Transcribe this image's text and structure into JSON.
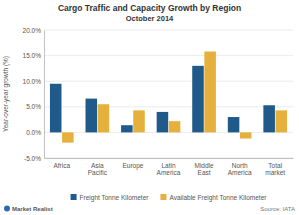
{
  "chart_data": {
    "type": "bar",
    "title": "Cargo Traffic and Capacity Growth by Region",
    "subtitle": "October 2014",
    "y_label": "Year-over-year growth (%)",
    "source": "Source: IATA",
    "logo": "Market Realist",
    "categories": [
      "Africa",
      "Asia Pacific",
      "Europe",
      "Latin America",
      "Middle East",
      "North America",
      "Total market"
    ],
    "series": [
      {
        "name": "Freight Tonne Kilometer",
        "color": "#1f5a8a",
        "values": [
          9.5,
          6.6,
          1.4,
          4.0,
          13.0,
          3.0,
          5.3
        ]
      },
      {
        "name": "Available Freight Tonne Kilometer",
        "color": "#e6b03c",
        "values": [
          -2.0,
          5.5,
          4.3,
          2.2,
          15.8,
          -1.2,
          4.3
        ]
      }
    ],
    "ylim": [
      -5,
      20
    ],
    "yticks": [
      {
        "value": -5,
        "label": "-5.0%"
      },
      {
        "value": 0,
        "label": "0.0%"
      },
      {
        "value": 5,
        "label": "5.0%"
      },
      {
        "value": 10,
        "label": "10.0%"
      },
      {
        "value": 15,
        "label": "15.0%"
      },
      {
        "value": 20,
        "label": "20.0%"
      }
    ],
    "grid": true,
    "legend": "bottom"
  }
}
